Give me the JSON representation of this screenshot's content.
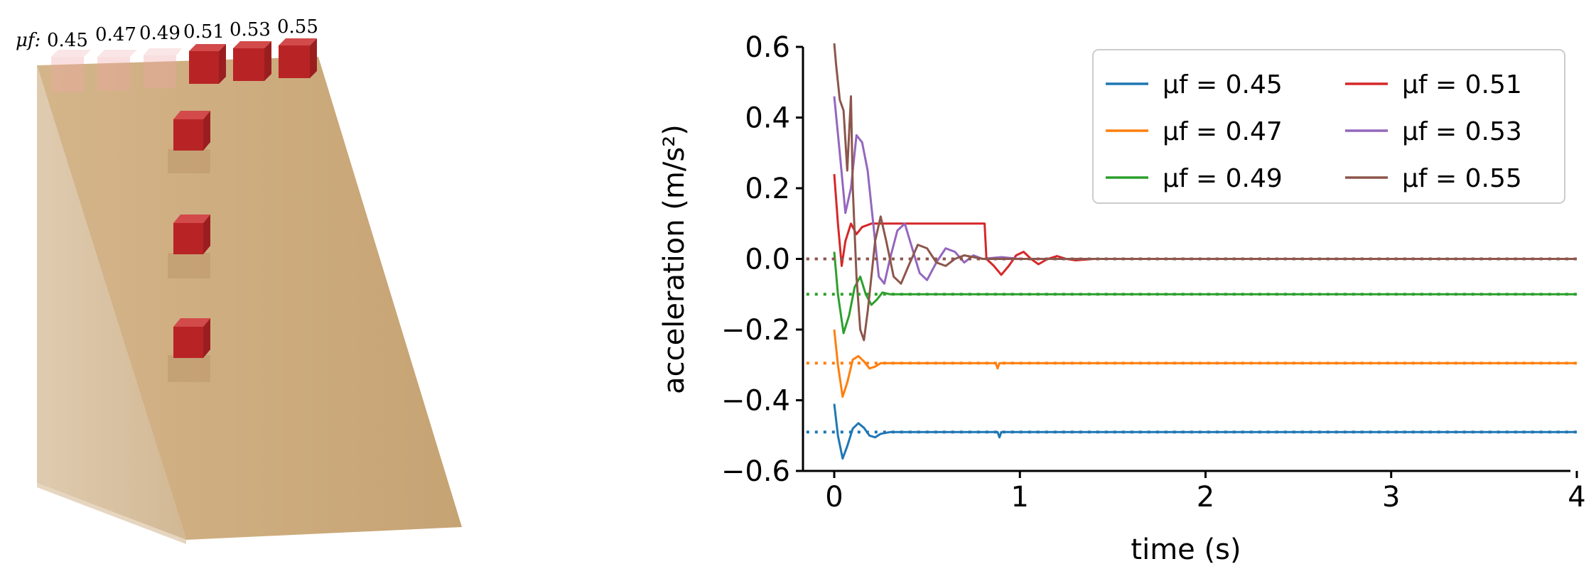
{
  "scene": {
    "mu_label": "μf:",
    "mu_values": [
      "0.45",
      "0.47",
      "0.49",
      "0.51",
      "0.53",
      "0.55"
    ],
    "incline_color": "#c8a679",
    "block_color": "#c0282a"
  },
  "chart_data": {
    "type": "line",
    "xlabel": "time (s)",
    "ylabel": "acceleration (m/s²)",
    "xlim": [
      -0.15,
      4.05
    ],
    "ylim": [
      -0.6,
      0.6
    ],
    "xticks": [
      0,
      1,
      2,
      3,
      4
    ],
    "xtick_labels": [
      "0",
      "1",
      "2",
      "3",
      "4"
    ],
    "yticks": [
      -0.6,
      -0.4,
      -0.2,
      0.0,
      0.2,
      0.4,
      0.6
    ],
    "ytick_labels": [
      "−0.6",
      "−0.4",
      "−0.2",
      "0.0",
      "0.2",
      "0.4",
      "0.6"
    ],
    "legend_position": "top-right",
    "legend_columns": 2,
    "grid": false,
    "series": [
      {
        "name": "μf = 0.45",
        "color": "#1f77b4",
        "target": -0.49,
        "points": [
          [
            0,
            -0.41
          ],
          [
            0.02,
            -0.5
          ],
          [
            0.045,
            -0.565
          ],
          [
            0.07,
            -0.53
          ],
          [
            0.1,
            -0.48
          ],
          [
            0.13,
            -0.465
          ],
          [
            0.16,
            -0.478
          ],
          [
            0.19,
            -0.5
          ],
          [
            0.22,
            -0.505
          ],
          [
            0.25,
            -0.495
          ],
          [
            0.3,
            -0.49
          ],
          [
            0.5,
            -0.49
          ],
          [
            0.88,
            -0.49
          ],
          [
            0.89,
            -0.505
          ],
          [
            0.9,
            -0.49
          ],
          [
            4.0,
            -0.49
          ]
        ]
      },
      {
        "name": "μf = 0.47",
        "color": "#ff7f0e",
        "target": -0.295,
        "points": [
          [
            0,
            -0.2
          ],
          [
            0.02,
            -0.3
          ],
          [
            0.045,
            -0.39
          ],
          [
            0.07,
            -0.35
          ],
          [
            0.1,
            -0.285
          ],
          [
            0.13,
            -0.275
          ],
          [
            0.16,
            -0.29
          ],
          [
            0.19,
            -0.31
          ],
          [
            0.22,
            -0.305
          ],
          [
            0.25,
            -0.295
          ],
          [
            0.3,
            -0.295
          ],
          [
            0.87,
            -0.295
          ],
          [
            0.88,
            -0.31
          ],
          [
            0.89,
            -0.295
          ],
          [
            4.0,
            -0.295
          ]
        ]
      },
      {
        "name": "μf = 0.49",
        "color": "#2ca02c",
        "target": -0.1,
        "points": [
          [
            0,
            0.02
          ],
          [
            0.02,
            -0.1
          ],
          [
            0.05,
            -0.21
          ],
          [
            0.08,
            -0.16
          ],
          [
            0.11,
            -0.08
          ],
          [
            0.14,
            -0.05
          ],
          [
            0.17,
            -0.1
          ],
          [
            0.2,
            -0.13
          ],
          [
            0.23,
            -0.115
          ],
          [
            0.26,
            -0.095
          ],
          [
            0.3,
            -0.1
          ],
          [
            4.0,
            -0.1
          ]
        ]
      },
      {
        "name": "μf = 0.51",
        "color": "#d62728",
        "target": 0.0,
        "points": [
          [
            0,
            0.24
          ],
          [
            0.02,
            0.1
          ],
          [
            0.04,
            -0.02
          ],
          [
            0.06,
            0.05
          ],
          [
            0.09,
            0.1
          ],
          [
            0.12,
            0.07
          ],
          [
            0.15,
            0.09
          ],
          [
            0.2,
            0.1
          ],
          [
            0.3,
            0.1
          ],
          [
            0.5,
            0.1
          ],
          [
            0.81,
            0.1
          ],
          [
            0.82,
            0.0
          ],
          [
            0.86,
            -0.02
          ],
          [
            0.9,
            -0.045
          ],
          [
            0.94,
            -0.02
          ],
          [
            0.98,
            0.01
          ],
          [
            1.02,
            0.02
          ],
          [
            1.06,
            0.0
          ],
          [
            1.1,
            -0.015
          ],
          [
            1.15,
            0.0
          ],
          [
            1.2,
            0.008
          ],
          [
            1.25,
            0.0
          ],
          [
            1.3,
            -0.004
          ],
          [
            1.4,
            0.0
          ],
          [
            4.0,
            0.0
          ]
        ]
      },
      {
        "name": "μf = 0.53",
        "color": "#9467bd",
        "target": 0.0,
        "points": [
          [
            0,
            0.46
          ],
          [
            0.03,
            0.3
          ],
          [
            0.06,
            0.13
          ],
          [
            0.09,
            0.2
          ],
          [
            0.12,
            0.35
          ],
          [
            0.15,
            0.33
          ],
          [
            0.18,
            0.25
          ],
          [
            0.21,
            0.1
          ],
          [
            0.24,
            -0.05
          ],
          [
            0.27,
            -0.07
          ],
          [
            0.3,
            0.0
          ],
          [
            0.34,
            0.08
          ],
          [
            0.38,
            0.1
          ],
          [
            0.42,
            0.03
          ],
          [
            0.46,
            -0.04
          ],
          [
            0.5,
            -0.06
          ],
          [
            0.55,
            -0.01
          ],
          [
            0.6,
            0.03
          ],
          [
            0.65,
            0.02
          ],
          [
            0.7,
            -0.01
          ],
          [
            0.75,
            0.01
          ],
          [
            0.8,
            0.0
          ],
          [
            0.9,
            0.005
          ],
          [
            1.0,
            0.0
          ],
          [
            4.0,
            0.0
          ]
        ]
      },
      {
        "name": "μf = 0.55",
        "color": "#8c564b",
        "target": 0.0,
        "points": [
          [
            0,
            0.61
          ],
          [
            0.01,
            0.55
          ],
          [
            0.03,
            0.45
          ],
          [
            0.05,
            0.42
          ],
          [
            0.07,
            0.25
          ],
          [
            0.09,
            0.46
          ],
          [
            0.1,
            0.2
          ],
          [
            0.12,
            -0.05
          ],
          [
            0.14,
            -0.2
          ],
          [
            0.16,
            -0.23
          ],
          [
            0.18,
            -0.15
          ],
          [
            0.2,
            -0.05
          ],
          [
            0.22,
            0.05
          ],
          [
            0.25,
            0.12
          ],
          [
            0.28,
            0.05
          ],
          [
            0.32,
            -0.05
          ],
          [
            0.36,
            -0.07
          ],
          [
            0.4,
            -0.02
          ],
          [
            0.45,
            0.04
          ],
          [
            0.5,
            0.03
          ],
          [
            0.55,
            -0.01
          ],
          [
            0.6,
            -0.02
          ],
          [
            0.65,
            0.0
          ],
          [
            0.7,
            0.01
          ],
          [
            0.8,
            0.0
          ],
          [
            4.0,
            0.0
          ]
        ]
      }
    ]
  }
}
